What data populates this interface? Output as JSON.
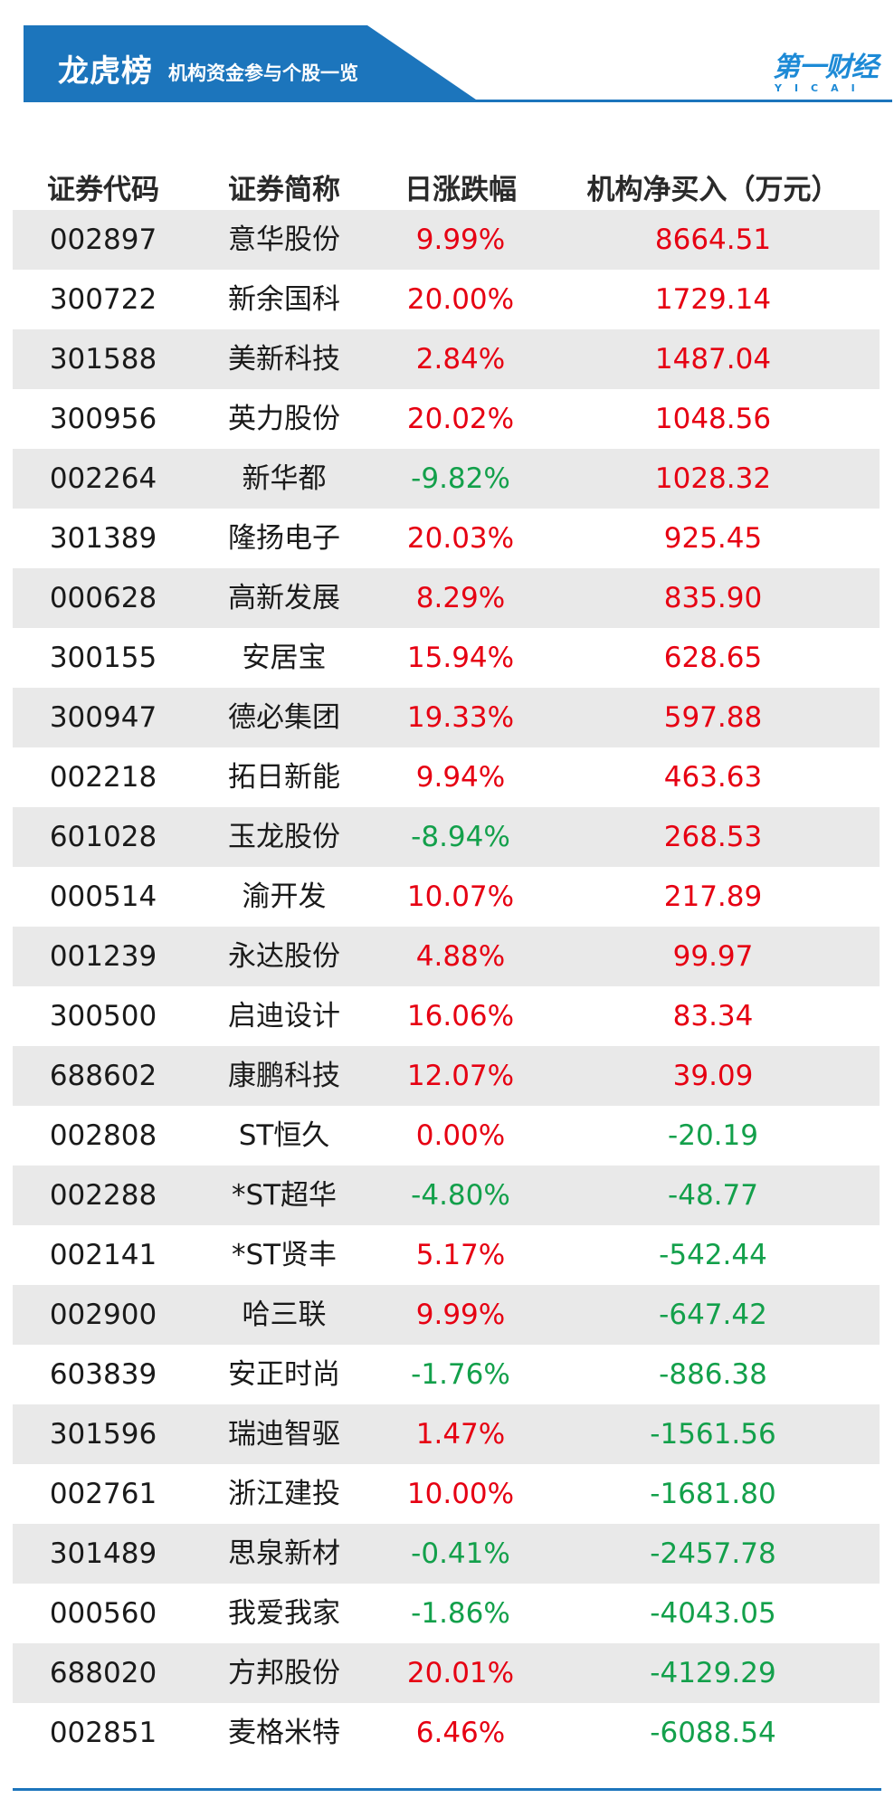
{
  "header": {
    "title": "龙虎榜",
    "subtitle": "机构资金参与个股一览",
    "logo_cn": "第一财经",
    "logo_en": "YICAI",
    "brand_color": "#1c75bc"
  },
  "colors": {
    "up": "#e60012",
    "down": "#13a04b"
  },
  "table": {
    "columns": [
      "证券代码",
      "证券简称",
      "日涨跌幅",
      "机构净买入（万元）"
    ],
    "rows": [
      {
        "code": "002897",
        "name": "意华股份",
        "change": "9.99%",
        "net": "8664.51"
      },
      {
        "code": "300722",
        "name": "新余国科",
        "change": "20.00%",
        "net": "1729.14"
      },
      {
        "code": "301588",
        "name": "美新科技",
        "change": "2.84%",
        "net": "1487.04"
      },
      {
        "code": "300956",
        "name": "英力股份",
        "change": "20.02%",
        "net": "1048.56"
      },
      {
        "code": "002264",
        "name": "新华都",
        "change": "-9.82%",
        "net": "1028.32"
      },
      {
        "code": "301389",
        "name": "隆扬电子",
        "change": "20.03%",
        "net": "925.45"
      },
      {
        "code": "000628",
        "name": "高新发展",
        "change": "8.29%",
        "net": "835.90"
      },
      {
        "code": "300155",
        "name": "安居宝",
        "change": "15.94%",
        "net": "628.65"
      },
      {
        "code": "300947",
        "name": "德必集团",
        "change": "19.33%",
        "net": "597.88"
      },
      {
        "code": "002218",
        "name": "拓日新能",
        "change": "9.94%",
        "net": "463.63"
      },
      {
        "code": "601028",
        "name": "玉龙股份",
        "change": "-8.94%",
        "net": "268.53"
      },
      {
        "code": "000514",
        "name": "渝开发",
        "change": "10.07%",
        "net": "217.89"
      },
      {
        "code": "001239",
        "name": "永达股份",
        "change": "4.88%",
        "net": "99.97"
      },
      {
        "code": "300500",
        "name": "启迪设计",
        "change": "16.06%",
        "net": "83.34"
      },
      {
        "code": "688602",
        "name": "康鹏科技",
        "change": "12.07%",
        "net": "39.09"
      },
      {
        "code": "002808",
        "name": "ST恒久",
        "change": "0.00%",
        "net": "-20.19"
      },
      {
        "code": "002288",
        "name": "*ST超华",
        "change": "-4.80%",
        "net": "-48.77"
      },
      {
        "code": "002141",
        "name": "*ST贤丰",
        "change": "5.17%",
        "net": "-542.44"
      },
      {
        "code": "002900",
        "name": "哈三联",
        "change": "9.99%",
        "net": "-647.42"
      },
      {
        "code": "603839",
        "name": "安正时尚",
        "change": "-1.76%",
        "net": "-886.38"
      },
      {
        "code": "301596",
        "name": "瑞迪智驱",
        "change": "1.47%",
        "net": "-1561.56"
      },
      {
        "code": "002761",
        "name": "浙江建投",
        "change": "10.00%",
        "net": "-1681.80"
      },
      {
        "code": "301489",
        "name": "思泉新材",
        "change": "-0.41%",
        "net": "-2457.78"
      },
      {
        "code": "000560",
        "name": "我爱我家",
        "change": "-1.86%",
        "net": "-4043.05"
      },
      {
        "code": "688020",
        "name": "方邦股份",
        "change": "20.01%",
        "net": "-4129.29"
      },
      {
        "code": "002851",
        "name": "麦格米特",
        "change": "6.46%",
        "net": "-6088.54"
      }
    ]
  }
}
